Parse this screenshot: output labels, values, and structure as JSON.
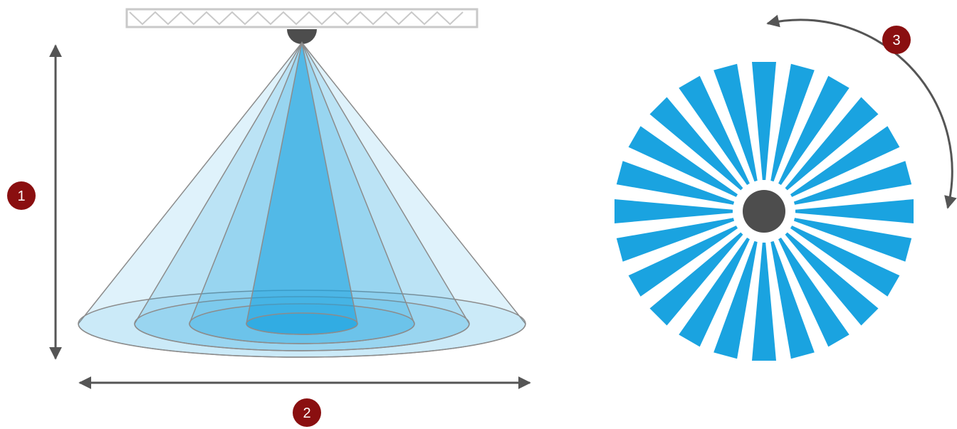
{
  "badges": {
    "height": "1",
    "diameter": "2",
    "rotation": "3"
  },
  "colors": {
    "beam_fill": "#1aa3e0",
    "badge": "#8a0f10",
    "arrow": "#555555",
    "hub": "#4d4d4d",
    "truss": "#c9c9c9",
    "cone_stroke": "#8c8c8c",
    "background": "#ffffff"
  },
  "icons": {
    "fixture": "spray-nozzle-icon",
    "truss": "truss-icon",
    "pattern": "rotating-beam-pattern-icon"
  },
  "pattern": {
    "spoke_count": 24
  }
}
